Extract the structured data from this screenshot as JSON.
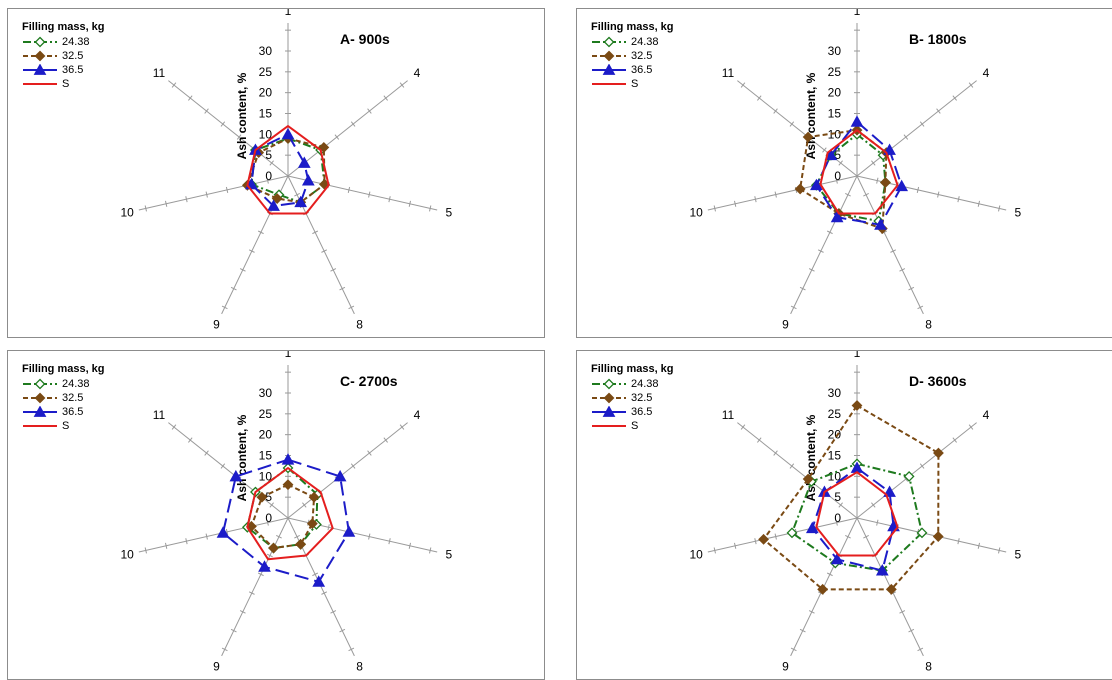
{
  "legend_title": "Filling mass, kg",
  "axis_label": "Ash content, %",
  "colors": {
    "series_24": "#1e7a1e",
    "series_32": "#7a4a14",
    "series_36": "#1c1cc8",
    "series_S": "#e41e1e",
    "grid": "#9a9a9a"
  },
  "chart_data": [
    {
      "type": "radar",
      "title": "A- 900s",
      "categories": [
        "1",
        "4",
        "5",
        "8",
        "9",
        "10",
        "11"
      ],
      "rlim": [
        0,
        30
      ],
      "r_ticks": [
        "0",
        "5",
        "10",
        "15",
        "20",
        "25",
        "30"
      ],
      "series": [
        {
          "name": "24.38",
          "values": [
            9,
            10,
            9,
            7,
            5,
            9,
            10
          ]
        },
        {
          "name": "32.5",
          "values": [
            9,
            11,
            9,
            7,
            6,
            10,
            9
          ]
        },
        {
          "name": "36.5",
          "values": [
            10,
            5,
            5,
            7,
            8,
            9,
            10
          ]
        },
        {
          "name": "S",
          "values": [
            12,
            10,
            10,
            10,
            10,
            10,
            10
          ]
        }
      ]
    },
    {
      "type": "radar",
      "title": "B- 1800s",
      "categories": [
        "1",
        "4",
        "5",
        "8",
        "9",
        "10",
        "11"
      ],
      "rlim": [
        0,
        30
      ],
      "r_ticks": [
        "0",
        "5",
        "10",
        "15",
        "20",
        "25",
        "30"
      ],
      "series": [
        {
          "name": "24.38",
          "values": [
            10,
            8,
            7,
            12,
            10,
            10,
            8
          ]
        },
        {
          "name": "32.5",
          "values": [
            11,
            9,
            7,
            14,
            10,
            14,
            15
          ]
        },
        {
          "name": "36.5",
          "values": [
            13,
            10,
            11,
            13,
            11,
            10,
            8
          ]
        },
        {
          "name": "S",
          "values": [
            11,
            9,
            10,
            10,
            10,
            9,
            9
          ]
        }
      ]
    },
    {
      "type": "radar",
      "title": "C- 2700s",
      "categories": [
        "1",
        "4",
        "5",
        "8",
        "9",
        "10",
        "11"
      ],
      "rlim": [
        0,
        30
      ],
      "r_ticks": [
        "0",
        "5",
        "10",
        "15",
        "20",
        "25",
        "30"
      ],
      "series": [
        {
          "name": "24.38",
          "values": [
            12,
            9,
            7,
            7,
            8,
            10,
            10
          ]
        },
        {
          "name": "32.5",
          "values": [
            8,
            8,
            6,
            7,
            8,
            9,
            8
          ]
        },
        {
          "name": "36.5",
          "values": [
            14,
            16,
            15,
            17,
            13,
            16,
            16
          ]
        },
        {
          "name": "S",
          "values": [
            12,
            10,
            11,
            10,
            11,
            10,
            10
          ]
        }
      ]
    },
    {
      "type": "radar",
      "title": "D- 3600s",
      "categories": [
        "1",
        "4",
        "5",
        "8",
        "9",
        "10",
        "11"
      ],
      "rlim": [
        0,
        30
      ],
      "r_ticks": [
        "0",
        "5",
        "10",
        "15",
        "20",
        "25",
        "30"
      ],
      "series": [
        {
          "name": "24.38",
          "values": [
            13,
            16,
            16,
            14,
            12,
            16,
            14
          ]
        },
        {
          "name": "32.5",
          "values": [
            27,
            25,
            20,
            19,
            19,
            23,
            15
          ]
        },
        {
          "name": "36.5",
          "values": [
            12,
            10,
            9,
            14,
            11,
            11,
            10
          ]
        },
        {
          "name": "S",
          "values": [
            11,
            9,
            10,
            10,
            10,
            10,
            10
          ]
        }
      ]
    }
  ]
}
